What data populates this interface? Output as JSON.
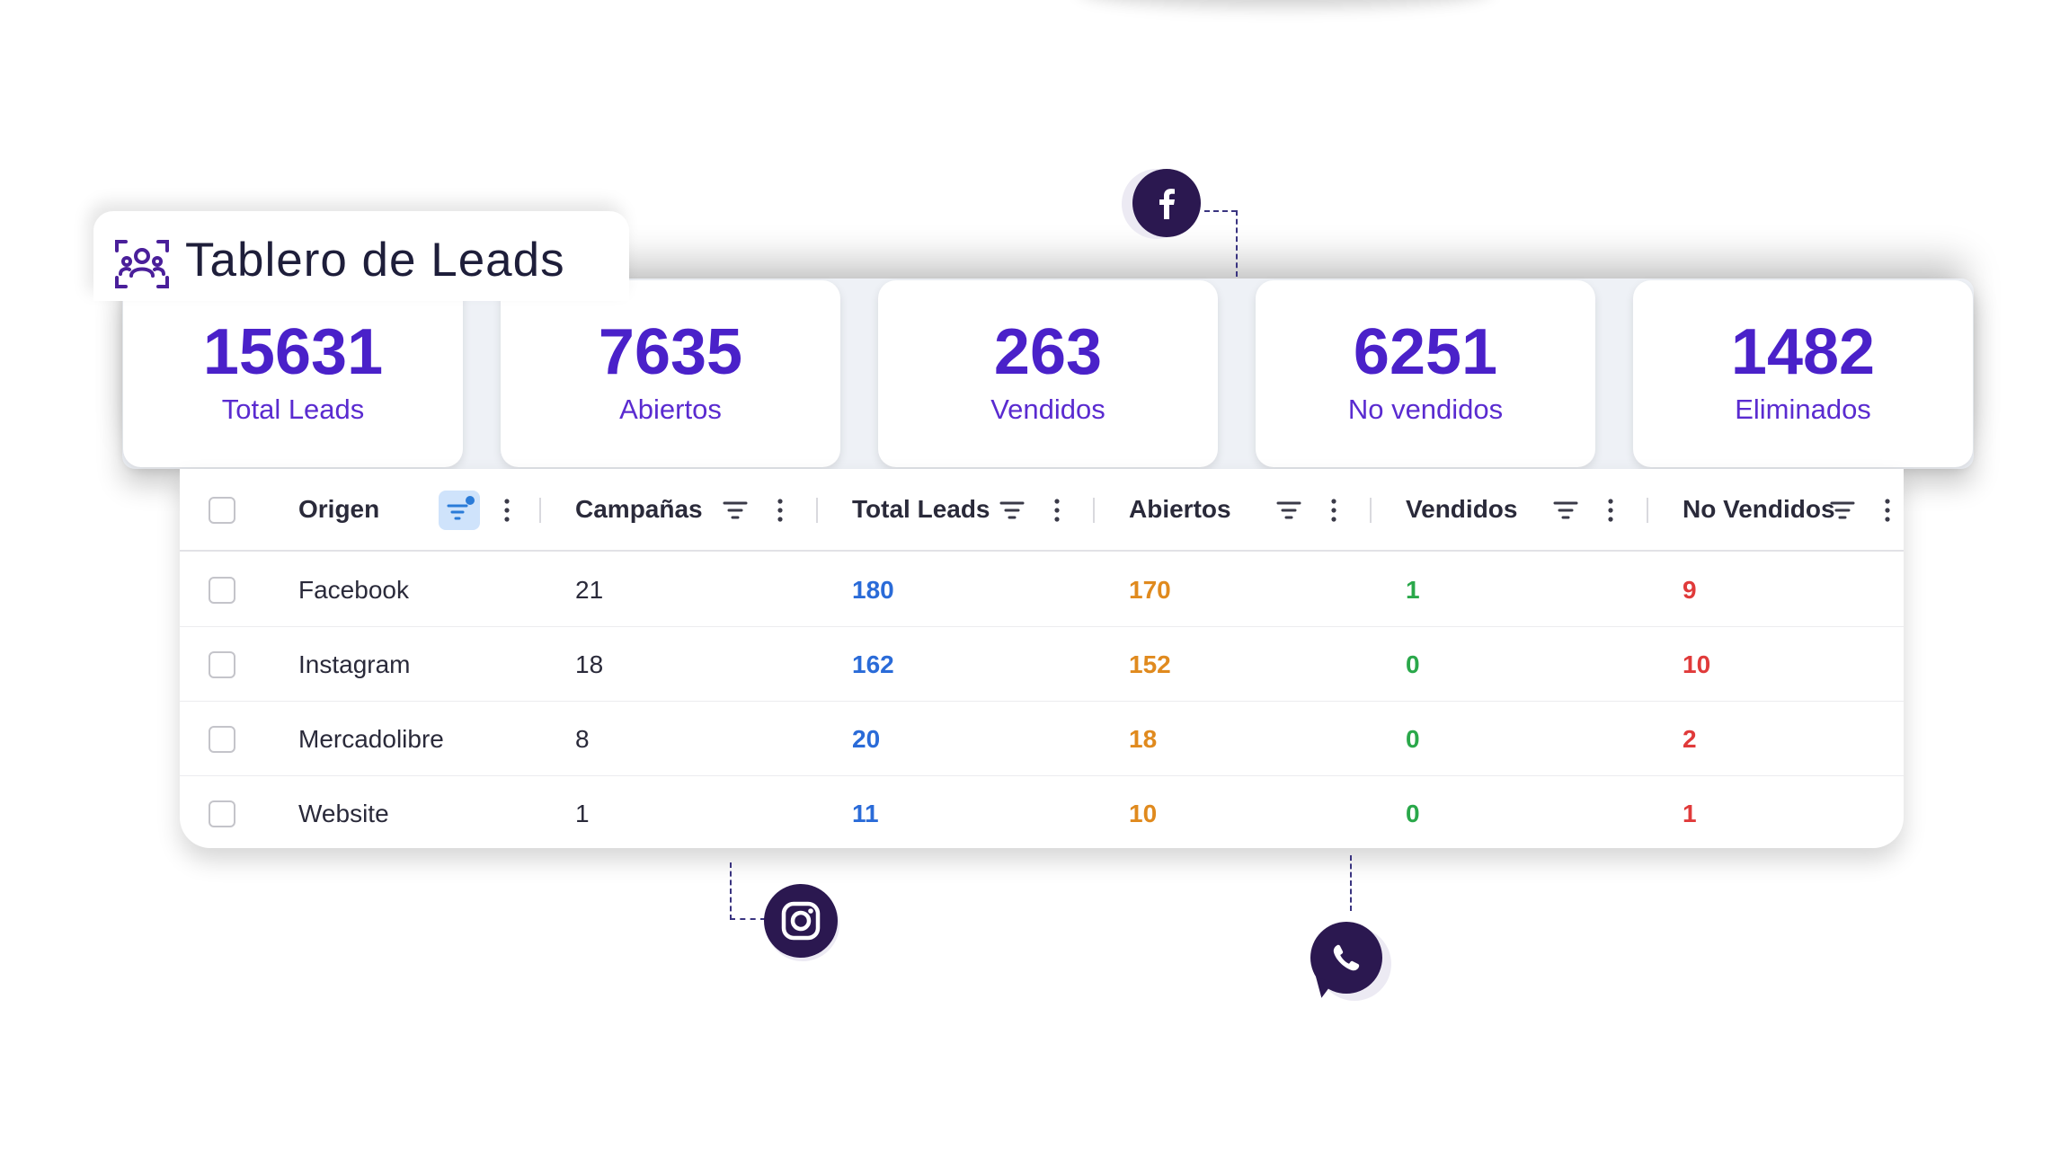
{
  "title": "Tablero de Leads",
  "icons": {
    "title": "leads-group-icon",
    "facebook": "facebook-icon",
    "instagram": "instagram-icon",
    "whatsapp": "whatsapp-icon",
    "filter": "filter-icon",
    "menu": "kebab-menu-icon"
  },
  "stats": [
    {
      "value": "15631",
      "label": "Total Leads"
    },
    {
      "value": "7635",
      "label": "Abiertos"
    },
    {
      "value": "263",
      "label": "Vendidos"
    },
    {
      "value": "6251",
      "label": "No vendidos"
    },
    {
      "value": "1482",
      "label": "Eliminados"
    }
  ],
  "table": {
    "columns": [
      "Origen",
      "Campañas",
      "Total Leads",
      "Abiertos",
      "Vendidos",
      "No Vendidos"
    ],
    "rows": [
      {
        "origen": "Facebook",
        "campanas": "21",
        "total": "180",
        "abiertos": "170",
        "vendidos": "1",
        "no_vendidos": "9"
      },
      {
        "origen": "Instagram",
        "campanas": "18",
        "total": "162",
        "abiertos": "152",
        "vendidos": "0",
        "no_vendidos": "10"
      },
      {
        "origen": "Mercadolibre",
        "campanas": "8",
        "total": "20",
        "abiertos": "18",
        "vendidos": "0",
        "no_vendidos": "2"
      },
      {
        "origen": "Website",
        "campanas": "1",
        "total": "11",
        "abiertos": "10",
        "vendidos": "0",
        "no_vendidos": "1"
      }
    ]
  },
  "colors": {
    "accent": "#4a21c9",
    "badge": "#2b1850",
    "total": "#2a6bd8",
    "abiertos": "#e08a1e",
    "vendidos": "#2aa84a",
    "no_vendidos": "#e03a3a"
  }
}
